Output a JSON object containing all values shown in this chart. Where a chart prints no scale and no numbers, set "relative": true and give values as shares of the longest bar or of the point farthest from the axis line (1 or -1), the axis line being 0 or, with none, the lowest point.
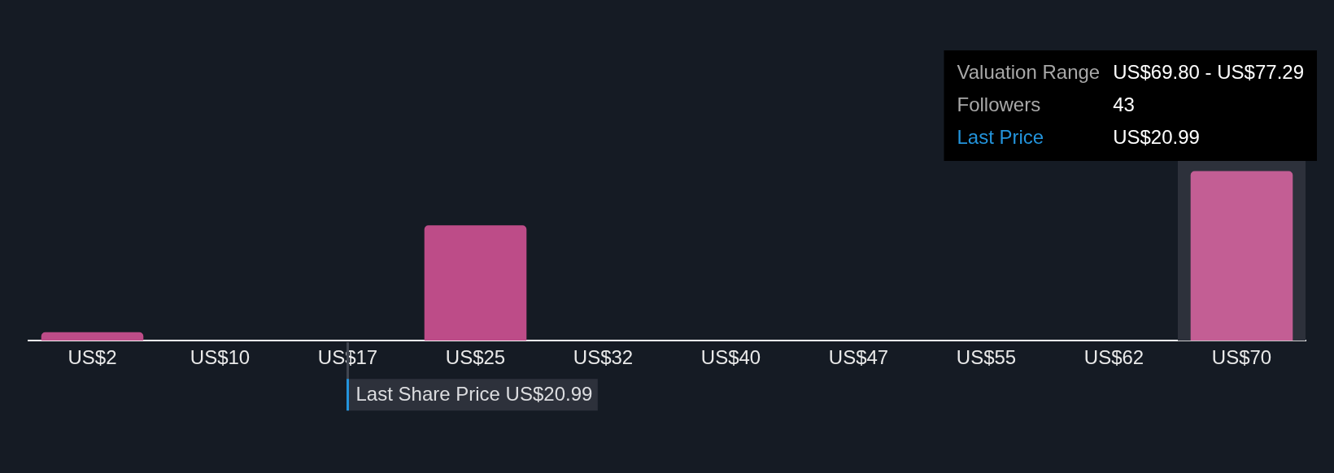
{
  "chart_data": {
    "type": "bar",
    "categories": [
      "US$2",
      "US$10",
      "US$17",
      "US$25",
      "US$32",
      "US$40",
      "US$47",
      "US$55",
      "US$62",
      "US$70"
    ],
    "values": [
      0.05,
      0,
      0,
      0.68,
      0,
      0,
      0,
      0,
      0,
      1
    ],
    "relative": true,
    "colors": [
      "#bd4c88",
      "#bd4c88",
      "#bd4c88",
      "#bd4c88",
      "#bd4c88",
      "#bd4c88",
      "#bd4c88",
      "#bd4c88",
      "#bd4c88",
      "#c35e94"
    ],
    "ref_lines": [
      {
        "axis": "x",
        "value": "US$17",
        "label": "Last Share Price US$20.99",
        "color": "#40454f"
      }
    ],
    "bands": [
      {
        "axis": "x",
        "from": "US$70",
        "to": "US$70",
        "color": "#2d313b"
      }
    ],
    "annotations": [
      "Valuation Range",
      "US$69.80 - US$77.29",
      "Followers",
      "43",
      "Last Price",
      "US$20.99"
    ]
  }
}
